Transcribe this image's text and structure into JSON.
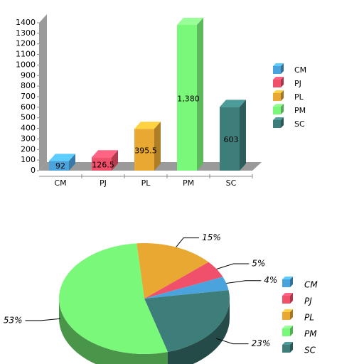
{
  "chart_data": [
    {
      "type": "bar3d",
      "categories": [
        "CM",
        "PJ",
        "PL",
        "PM",
        "SC"
      ],
      "values": [
        92,
        126.5,
        395.5,
        1380,
        603
      ],
      "value_labels": [
        "92",
        "126.5",
        "395.5",
        "1,380",
        "603"
      ],
      "colors": [
        "#4aa3dc",
        "#f0506a",
        "#e8a832",
        "#7af87a",
        "#3d7d7a"
      ],
      "ylim": [
        0,
        1400
      ],
      "yticks": [
        0,
        100,
        200,
        300,
        400,
        500,
        600,
        700,
        800,
        900,
        1000,
        1100,
        1200,
        1300,
        1400
      ],
      "legend": "right"
    },
    {
      "type": "pie3d",
      "categories": [
        "CM",
        "PJ",
        "PL",
        "PM",
        "SC"
      ],
      "values": [
        4,
        5,
        15,
        53,
        23
      ],
      "value_labels": [
        "4%",
        "5%",
        "15%",
        "53%",
        "23%"
      ],
      "colors": [
        "#4aa3dc",
        "#f0506a",
        "#e8a832",
        "#7af87a",
        "#3d7d7a"
      ],
      "legend": "right"
    }
  ]
}
